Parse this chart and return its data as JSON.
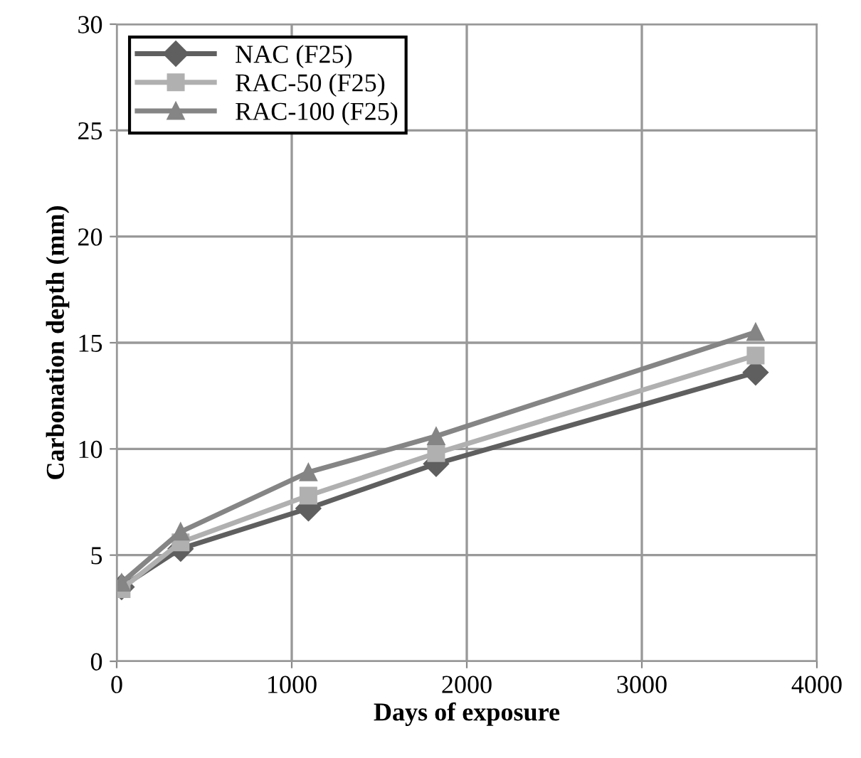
{
  "chart_data": {
    "type": "line",
    "xlabel": "Days of exposure",
    "ylabel": "Carbonation depth (mm)",
    "xlim": [
      0,
      4000
    ],
    "xticks": [
      0,
      1000,
      2000,
      3000,
      4000
    ],
    "ylim": [
      0,
      30
    ],
    "yticks": [
      0,
      5,
      10,
      15,
      20,
      25,
      30
    ],
    "grid": true,
    "legend": "top left",
    "line_style": "solid",
    "series": [
      {
        "name": "NAC (F25)",
        "color": "#5f5f5f",
        "marker": "diamond",
        "x": [
          28,
          365,
          1095,
          1825,
          3650
        ],
        "values": [
          3.5,
          5.3,
          7.2,
          9.3,
          13.6
        ]
      },
      {
        "name": "RAC-50 (F25)",
        "color": "#b0b0b0",
        "marker": "square",
        "x": [
          28,
          365,
          1095,
          1825,
          3650
        ],
        "values": [
          3.4,
          5.6,
          7.8,
          9.8,
          14.4
        ]
      },
      {
        "name": "RAC-100 (F25)",
        "color": "#858585",
        "marker": "triangle",
        "x": [
          28,
          365,
          1095,
          1825,
          3650
        ],
        "values": [
          3.7,
          6.1,
          8.9,
          10.6,
          15.5
        ]
      }
    ]
  }
}
